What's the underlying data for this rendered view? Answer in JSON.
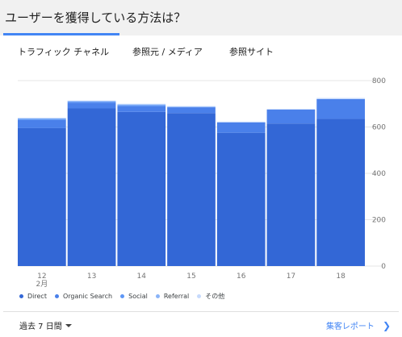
{
  "card": {
    "title": "ユーザーを獲得している方法は？"
  },
  "tabs": [
    {
      "label": "トラフィック チャネル",
      "selected": true
    },
    {
      "label": "参照元 / メディア",
      "selected": false
    },
    {
      "label": "参照サイト",
      "selected": false
    }
  ],
  "chart_data": {
    "type": "bar",
    "stacked": true,
    "categories": [
      "12",
      "13",
      "14",
      "15",
      "16",
      "17",
      "18"
    ],
    "category_sublabels": [
      "2月",
      "",
      "",
      "",
      "",
      "",
      ""
    ],
    "series": [
      {
        "name": "Direct",
        "color": "#3367d6",
        "values": [
          595,
          680,
          665,
          660,
          575,
          615,
          635
        ]
      },
      {
        "name": "Organic Search",
        "color": "#4a80ea",
        "values": [
          35,
          25,
          25,
          25,
          45,
          60,
          85
        ]
      },
      {
        "name": "Social",
        "color": "#5e97f6",
        "values": [
          5,
          5,
          5,
          0,
          0,
          0,
          0
        ]
      },
      {
        "name": "Referral",
        "color": "#8ab4f8",
        "values": [
          2,
          2,
          2,
          2,
          0,
          0,
          0
        ]
      },
      {
        "name": "その他",
        "color": "#c6dafc",
        "values": [
          3,
          2,
          3,
          3,
          3,
          3,
          5
        ]
      }
    ],
    "yticks": [
      0,
      200,
      400,
      600,
      800
    ],
    "ylim": [
      0,
      800
    ],
    "grid": true,
    "legend": "bottom-left"
  },
  "footer": {
    "range_label": "過去 7 日間",
    "report_link": "集客レポート"
  }
}
